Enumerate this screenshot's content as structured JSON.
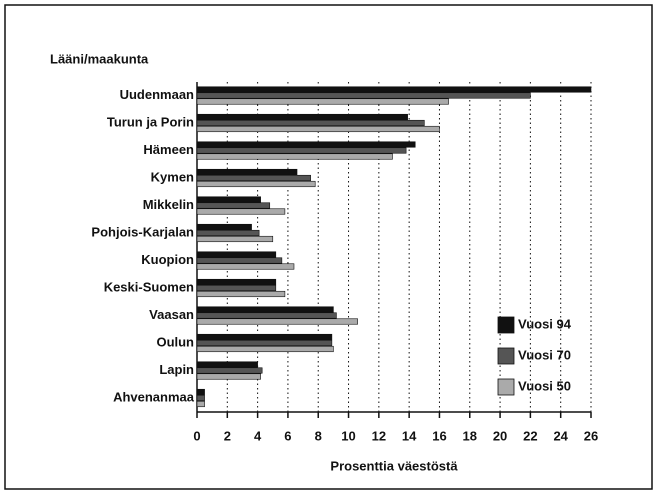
{
  "chart_data": {
    "type": "hbar",
    "ylabel": "Lääni/maakunta",
    "xlabel": "Prosenttia väestöstä",
    "categories": [
      "Uudenmaan",
      "Turun ja Porin",
      "Hämeen",
      "Kymen",
      "Mikkelin",
      "Pohjois-Karjalan",
      "Kuopion",
      "Keski-Suomen",
      "Vaasan",
      "Oulun",
      "Lapin",
      "Ahvenanmaa"
    ],
    "series": [
      {
        "name": "Vuosi 94",
        "color": "#111111",
        "values": [
          26,
          13.9,
          14.4,
          6.6,
          4.2,
          3.6,
          5.2,
          5.2,
          9.0,
          8.9,
          4.0,
          0.5
        ]
      },
      {
        "name": "Vuosi 70",
        "color": "#555555",
        "values": [
          22,
          15.0,
          13.8,
          7.5,
          4.8,
          4.1,
          5.6,
          5.2,
          9.2,
          8.9,
          4.3,
          0.5
        ]
      },
      {
        "name": "Vuosi 50",
        "color": "#aaaaaa",
        "values": [
          16.6,
          16.0,
          12.9,
          7.8,
          5.8,
          5.0,
          6.4,
          5.8,
          10.6,
          9.0,
          4.2,
          0.5
        ]
      }
    ],
    "xlim": [
      0,
      26
    ],
    "xticks": [
      0,
      2,
      4,
      6,
      8,
      10,
      12,
      14,
      16,
      18,
      20,
      22,
      24,
      26
    ],
    "grid": true
  }
}
